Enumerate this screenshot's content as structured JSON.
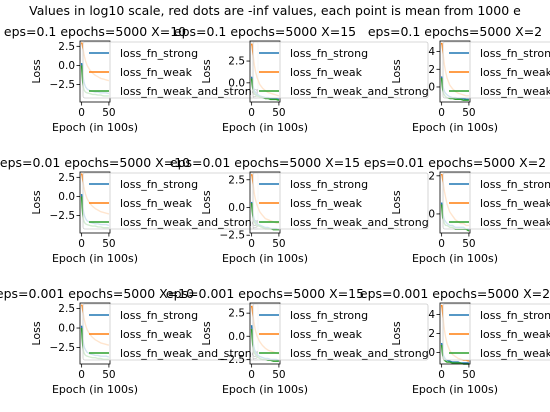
{
  "suptitle": "Values in log10 scale, red dots are -inf values, each point is mean from 1000 e",
  "series_names": [
    "loss_fn_strong",
    "loss_fn_weak",
    "loss_fn_weak_and_strong"
  ],
  "colors": {
    "loss_fn_strong": "#1f77b4",
    "loss_fn_weak": "#ff7f0e",
    "loss_fn_weak_and_strong": "#2ca02c",
    "minus_inf_dot": "#d62728"
  },
  "chart_data": [
    {
      "type": "line",
      "title": "eps=0.1 epochs=5000 X=10",
      "xlabel": "Epoch (in 100s)",
      "ylabel": "Loss",
      "xlim": [
        -3,
        52
      ],
      "ylim": [
        -4.8,
        3.2
      ],
      "x_ticks": [
        0,
        50
      ],
      "y_ticks": [
        -2.5,
        0.0,
        2.5
      ],
      "y_tick_labels": [
        "−2.5",
        "0.0",
        "2.5"
      ],
      "grid": false,
      "legend": "top-right",
      "x": [
        0,
        1,
        2,
        3,
        4,
        5,
        7,
        10,
        15,
        20,
        25,
        30,
        35,
        40,
        45,
        50
      ],
      "series": [
        {
          "name": "loss_fn_strong",
          "values": [
            0.3,
            -0.5,
            -1.2,
            -1.7,
            -2.1,
            -2.4,
            -2.8,
            -3.1,
            -3.3,
            -3.4,
            -3.5,
            -3.5,
            -3.6,
            -3.6,
            -3.6,
            -3.7
          ]
        },
        {
          "name": "loss_fn_weak",
          "values": [
            3.0,
            2.8,
            2.4,
            2.0,
            1.6,
            1.2,
            0.6,
            0.0,
            -0.6,
            -1.0,
            -1.3,
            -1.5,
            -1.7,
            -1.8,
            -1.9,
            -2.0
          ]
        },
        {
          "name": "loss_fn_weak_and_strong",
          "values": [
            0.0,
            -1.3,
            -2.2,
            -2.8,
            -3.1,
            -3.3,
            -3.5,
            -3.6,
            -3.7,
            -3.8,
            -3.8,
            -3.9,
            -3.9,
            -4.0,
            -4.0,
            -4.0
          ]
        }
      ]
    },
    {
      "type": "line",
      "title": "eps=0.1 epochs=5000 X=15",
      "xlabel": "Epoch (in 100s)",
      "ylabel": "Loss",
      "xlim": [
        -3,
        52
      ],
      "ylim": [
        -2.2,
        4.8
      ],
      "x_ticks": [
        0,
        50
      ],
      "y_ticks": [
        0.0,
        2.5
      ],
      "y_tick_labels": [
        "0.0",
        "2.5"
      ],
      "grid": false,
      "legend": "top-right",
      "x": [
        0,
        1,
        2,
        3,
        4,
        5,
        7,
        10,
        15,
        20,
        25,
        30,
        35,
        40,
        45,
        50
      ],
      "series": [
        {
          "name": "loss_fn_strong",
          "values": [
            0.7,
            0.2,
            -0.2,
            -0.5,
            -0.7,
            -0.9,
            -1.1,
            -1.3,
            -1.5,
            -1.6,
            -1.7,
            -1.7,
            -1.8,
            -1.8,
            -1.8,
            -1.9
          ]
        },
        {
          "name": "loss_fn_weak",
          "values": [
            4.5,
            4.2,
            3.6,
            3.0,
            2.5,
            2.0,
            1.3,
            0.6,
            -0.2,
            -0.6,
            -0.9,
            -1.1,
            -1.2,
            -1.3,
            -1.4,
            -1.5
          ]
        },
        {
          "name": "loss_fn_weak_and_strong",
          "values": [
            0.5,
            -0.2,
            -0.6,
            -0.9,
            -1.1,
            -1.2,
            -1.4,
            -1.5,
            -1.6,
            -1.7,
            -1.8,
            -1.8,
            -1.9,
            -1.9,
            -1.9,
            -2.0
          ]
        }
      ]
    },
    {
      "type": "line",
      "title": "eps=0.1 epochs=5000 X=2",
      "xlabel": "Epoch (in 100s)",
      "ylabel": "Loss",
      "xlim": [
        -3,
        52
      ],
      "ylim": [
        -1.7,
        5.2
      ],
      "x_ticks": [
        0,
        50
      ],
      "y_ticks": [
        0,
        2,
        4
      ],
      "y_tick_labels": [
        "0",
        "2",
        "4"
      ],
      "grid": false,
      "legend": "top-right",
      "x": [
        0,
        1,
        2,
        3,
        4,
        5,
        7,
        10,
        15,
        20,
        25,
        30,
        35,
        40,
        45,
        50
      ],
      "series": [
        {
          "name": "loss_fn_strong",
          "values": [
            1.2,
            0.6,
            0.2,
            -0.1,
            -0.3,
            -0.5,
            -0.7,
            -0.9,
            -1.1,
            -1.2,
            -1.2,
            -1.3,
            -1.3,
            -1.3,
            -1.4,
            -1.4
          ]
        },
        {
          "name": "loss_fn_weak",
          "values": [
            5.0,
            4.7,
            4.2,
            3.6,
            3.0,
            2.5,
            1.8,
            1.0,
            0.2,
            -0.2,
            -0.5,
            -0.7,
            -0.8,
            -0.9,
            -1.0,
            -1.0
          ]
        },
        {
          "name": "loss_fn_weak_and_strong",
          "values": [
            1.0,
            0.2,
            -0.3,
            -0.6,
            -0.8,
            -0.9,
            -1.1,
            -1.2,
            -1.3,
            -1.3,
            -1.4,
            -1.4,
            -1.4,
            -1.5,
            -1.5,
            -1.5
          ]
        }
      ]
    },
    {
      "type": "line",
      "title": "eps=0.01 epochs=5000 X=10",
      "xlabel": "Epoch (in 100s)",
      "ylabel": "Loss",
      "xlim": [
        -3,
        52
      ],
      "ylim": [
        -4.8,
        3.2
      ],
      "x_ticks": [
        0,
        50
      ],
      "y_ticks": [
        -2.5,
        0.0,
        2.5
      ],
      "y_tick_labels": [
        "−2.5",
        "0.0",
        "2.5"
      ],
      "grid": false,
      "legend": "top-right",
      "x": [
        0,
        1,
        2,
        3,
        4,
        5,
        7,
        10,
        15,
        20,
        25,
        30,
        35,
        40,
        45,
        50
      ],
      "series": [
        {
          "name": "loss_fn_strong",
          "values": [
            0.3,
            -0.6,
            -1.3,
            -1.8,
            -2.2,
            -2.5,
            -2.9,
            -3.2,
            -3.4,
            -3.5,
            -3.6,
            -3.6,
            -3.7,
            -3.7,
            -3.7,
            -3.8
          ]
        },
        {
          "name": "loss_fn_weak",
          "values": [
            3.0,
            2.7,
            2.2,
            1.7,
            1.3,
            0.9,
            0.3,
            -0.3,
            -0.9,
            -1.3,
            -1.6,
            -1.8,
            -2.0,
            -2.1,
            -2.2,
            -2.3
          ]
        },
        {
          "name": "loss_fn_weak_and_strong",
          "values": [
            0.0,
            -1.4,
            -2.3,
            -2.9,
            -3.2,
            -3.4,
            -3.6,
            -3.7,
            -3.8,
            -3.9,
            -3.9,
            -4.0,
            -4.0,
            -4.1,
            -4.1,
            -4.1
          ]
        }
      ]
    },
    {
      "type": "line",
      "title": "eps=0.01 epochs=5000 X=15",
      "xlabel": "Epoch (in 100s)",
      "ylabel": "Loss",
      "xlim": [
        -3,
        52
      ],
      "ylim": [
        -2.3,
        3.2
      ],
      "x_ticks": [
        0,
        50
      ],
      "y_ticks": [
        -2.5,
        0.0,
        2.5
      ],
      "y_tick_labels": [
        "−2.5",
        "0.0",
        "2.5"
      ],
      "grid": false,
      "legend": "top-right",
      "x": [
        0,
        1,
        2,
        3,
        4,
        5,
        7,
        10,
        15,
        20,
        25,
        30,
        35,
        40,
        45,
        50
      ],
      "series": [
        {
          "name": "loss_fn_strong",
          "values": [
            0.5,
            0.0,
            -0.4,
            -0.7,
            -0.9,
            -1.1,
            -1.3,
            -1.5,
            -1.6,
            -1.7,
            -1.8,
            -1.8,
            -1.9,
            -1.9,
            -1.9,
            -2.0
          ]
        },
        {
          "name": "loss_fn_weak",
          "values": [
            3.0,
            2.8,
            2.4,
            2.0,
            1.6,
            1.2,
            0.7,
            0.2,
            -0.4,
            -0.7,
            -1.0,
            -1.1,
            -1.2,
            -1.3,
            -1.4,
            -1.4
          ]
        },
        {
          "name": "loss_fn_weak_and_strong",
          "values": [
            0.4,
            -0.3,
            -0.7,
            -1.0,
            -1.2,
            -1.3,
            -1.5,
            -1.6,
            -1.7,
            -1.8,
            -1.9,
            -1.9,
            -1.9,
            -2.0,
            -2.0,
            -2.0
          ]
        }
      ]
    },
    {
      "type": "line",
      "title": "eps=0.01 epochs=5000 X=2",
      "xlabel": "Epoch (in 100s)",
      "ylabel": "Loss",
      "xlim": [
        -3,
        52
      ],
      "ylim": [
        -1.0,
        2.2
      ],
      "x_ticks": [
        0,
        50
      ],
      "y_ticks": [
        0,
        2
      ],
      "y_tick_labels": [
        "0",
        "2"
      ],
      "grid": false,
      "legend": "top-right",
      "x": [
        0,
        1,
        2,
        3,
        4,
        5,
        7,
        10,
        15,
        20,
        25,
        30,
        35,
        40,
        45,
        50
      ],
      "series": [
        {
          "name": "loss_fn_strong",
          "values": [
            0.6,
            0.3,
            0.1,
            -0.1,
            -0.2,
            -0.3,
            -0.4,
            -0.5,
            -0.6,
            -0.6,
            -0.7,
            -0.7,
            -0.7,
            -0.7,
            -0.8,
            -0.8
          ]
        },
        {
          "name": "loss_fn_weak",
          "values": [
            2.1,
            2.0,
            1.8,
            1.6,
            1.4,
            1.2,
            0.9,
            0.5,
            0.1,
            -0.1,
            -0.3,
            -0.4,
            -0.5,
            -0.5,
            -0.6,
            -0.6
          ]
        },
        {
          "name": "loss_fn_weak_and_strong",
          "values": [
            0.5,
            0.1,
            -0.2,
            -0.3,
            -0.4,
            -0.5,
            -0.6,
            -0.6,
            -0.7,
            -0.7,
            -0.8,
            -0.8,
            -0.8,
            -0.8,
            -0.8,
            -0.9
          ]
        }
      ]
    },
    {
      "type": "line",
      "title": "eps=0.001 epochs=5000 X=10",
      "xlabel": "Epoch (in 100s)",
      "ylabel": "Loss",
      "xlim": [
        -3,
        52
      ],
      "ylim": [
        -4.6,
        3.2
      ],
      "x_ticks": [
        0,
        50
      ],
      "y_ticks": [
        -2.5,
        0.0,
        2.5
      ],
      "y_tick_labels": [
        "−2.5",
        "0.0",
        "2.5"
      ],
      "grid": false,
      "legend": "top-right",
      "x": [
        0,
        1,
        2,
        3,
        4,
        5,
        7,
        10,
        15,
        20,
        25,
        30,
        35,
        40,
        45,
        50
      ],
      "series": [
        {
          "name": "loss_fn_strong",
          "values": [
            0.3,
            -0.6,
            -1.3,
            -1.8,
            -2.2,
            -2.5,
            -2.8,
            -3.1,
            -3.3,
            -3.4,
            -3.5,
            -3.5,
            -3.6,
            -3.6,
            -3.6,
            -3.7
          ]
        },
        {
          "name": "loss_fn_weak",
          "values": [
            3.0,
            2.8,
            2.3,
            1.8,
            1.4,
            1.0,
            0.4,
            -0.2,
            -0.8,
            -1.2,
            -1.5,
            -1.7,
            -1.9,
            -2.0,
            -2.1,
            -2.2
          ]
        },
        {
          "name": "loss_fn_weak_and_strong",
          "values": [
            0.0,
            -1.3,
            -2.2,
            -2.8,
            -3.1,
            -3.3,
            -3.5,
            -3.6,
            -3.7,
            -3.8,
            -3.8,
            -3.9,
            -3.9,
            -4.0,
            -4.0,
            -4.0
          ]
        }
      ]
    },
    {
      "type": "line",
      "title": "eps=0.001 epochs=5000 X=15",
      "xlabel": "Epoch (in 100s)",
      "ylabel": "Loss",
      "xlim": [
        -3,
        52
      ],
      "ylim": [
        -3.0,
        3.6
      ],
      "x_ticks": [
        0,
        50
      ],
      "y_ticks": [
        -2.5,
        0.0,
        2.5
      ],
      "y_tick_labels": [
        "−2.5",
        "0.0",
        "2.5"
      ],
      "grid": false,
      "legend": "top-right",
      "x": [
        0,
        1,
        2,
        3,
        4,
        5,
        7,
        10,
        15,
        20,
        25,
        30,
        35,
        40,
        45,
        50
      ],
      "series": [
        {
          "name": "loss_fn_strong",
          "values": [
            1.2,
            0.3,
            -0.3,
            -0.8,
            -1.1,
            -1.4,
            -1.7,
            -2.0,
            -2.2,
            -2.3,
            -2.4,
            -2.4,
            -2.5,
            -2.5,
            -2.5,
            -2.6
          ]
        },
        {
          "name": "loss_fn_weak",
          "values": [
            3.3,
            3.0,
            2.5,
            2.0,
            1.6,
            1.2,
            0.6,
            0.0,
            -0.6,
            -1.0,
            -1.3,
            -1.5,
            -1.6,
            -1.7,
            -1.8,
            -1.9
          ]
        },
        {
          "name": "loss_fn_weak_and_strong",
          "values": [
            0.8,
            -0.2,
            -0.9,
            -1.3,
            -1.6,
            -1.8,
            -2.0,
            -2.2,
            -2.4,
            -2.5,
            -2.5,
            -2.6,
            -2.6,
            -2.7,
            -2.7,
            -2.7
          ]
        }
      ]
    },
    {
      "type": "line",
      "title": "eps=0.001 epochs=5000 X=2",
      "xlabel": "Epoch (in 100s)",
      "ylabel": "Loss",
      "xlim": [
        -3,
        52
      ],
      "ylim": [
        -1.2,
        5.2
      ],
      "x_ticks": [
        0,
        50
      ],
      "y_ticks": [
        0,
        2,
        4
      ],
      "y_tick_labels": [
        "0",
        "2",
        "4"
      ],
      "grid": false,
      "legend": "top-right",
      "x": [
        0,
        1,
        2,
        3,
        4,
        5,
        7,
        10,
        15,
        20,
        25,
        30,
        35,
        40,
        45,
        50
      ],
      "series": [
        {
          "name": "loss_fn_strong",
          "values": [
            1.0,
            0.5,
            0.1,
            -0.2,
            -0.4,
            -0.5,
            -0.7,
            -0.8,
            -0.9,
            -1.0,
            -1.0,
            -1.0,
            -1.1,
            -1.1,
            -1.1,
            -1.1
          ]
        },
        {
          "name": "loss_fn_weak",
          "values": [
            5.0,
            4.7,
            4.1,
            3.5,
            2.9,
            2.4,
            1.7,
            0.9,
            0.2,
            -0.2,
            -0.4,
            -0.6,
            -0.7,
            -0.8,
            -0.8,
            -0.9
          ]
        },
        {
          "name": "loss_fn_weak_and_strong",
          "values": [
            0.8,
            0.1,
            -0.3,
            -0.5,
            -0.7,
            -0.8,
            -0.9,
            -1.0,
            -1.0,
            -1.1,
            -1.1,
            -1.1,
            -1.1,
            -1.2,
            -1.2,
            -1.2
          ]
        }
      ]
    }
  ]
}
